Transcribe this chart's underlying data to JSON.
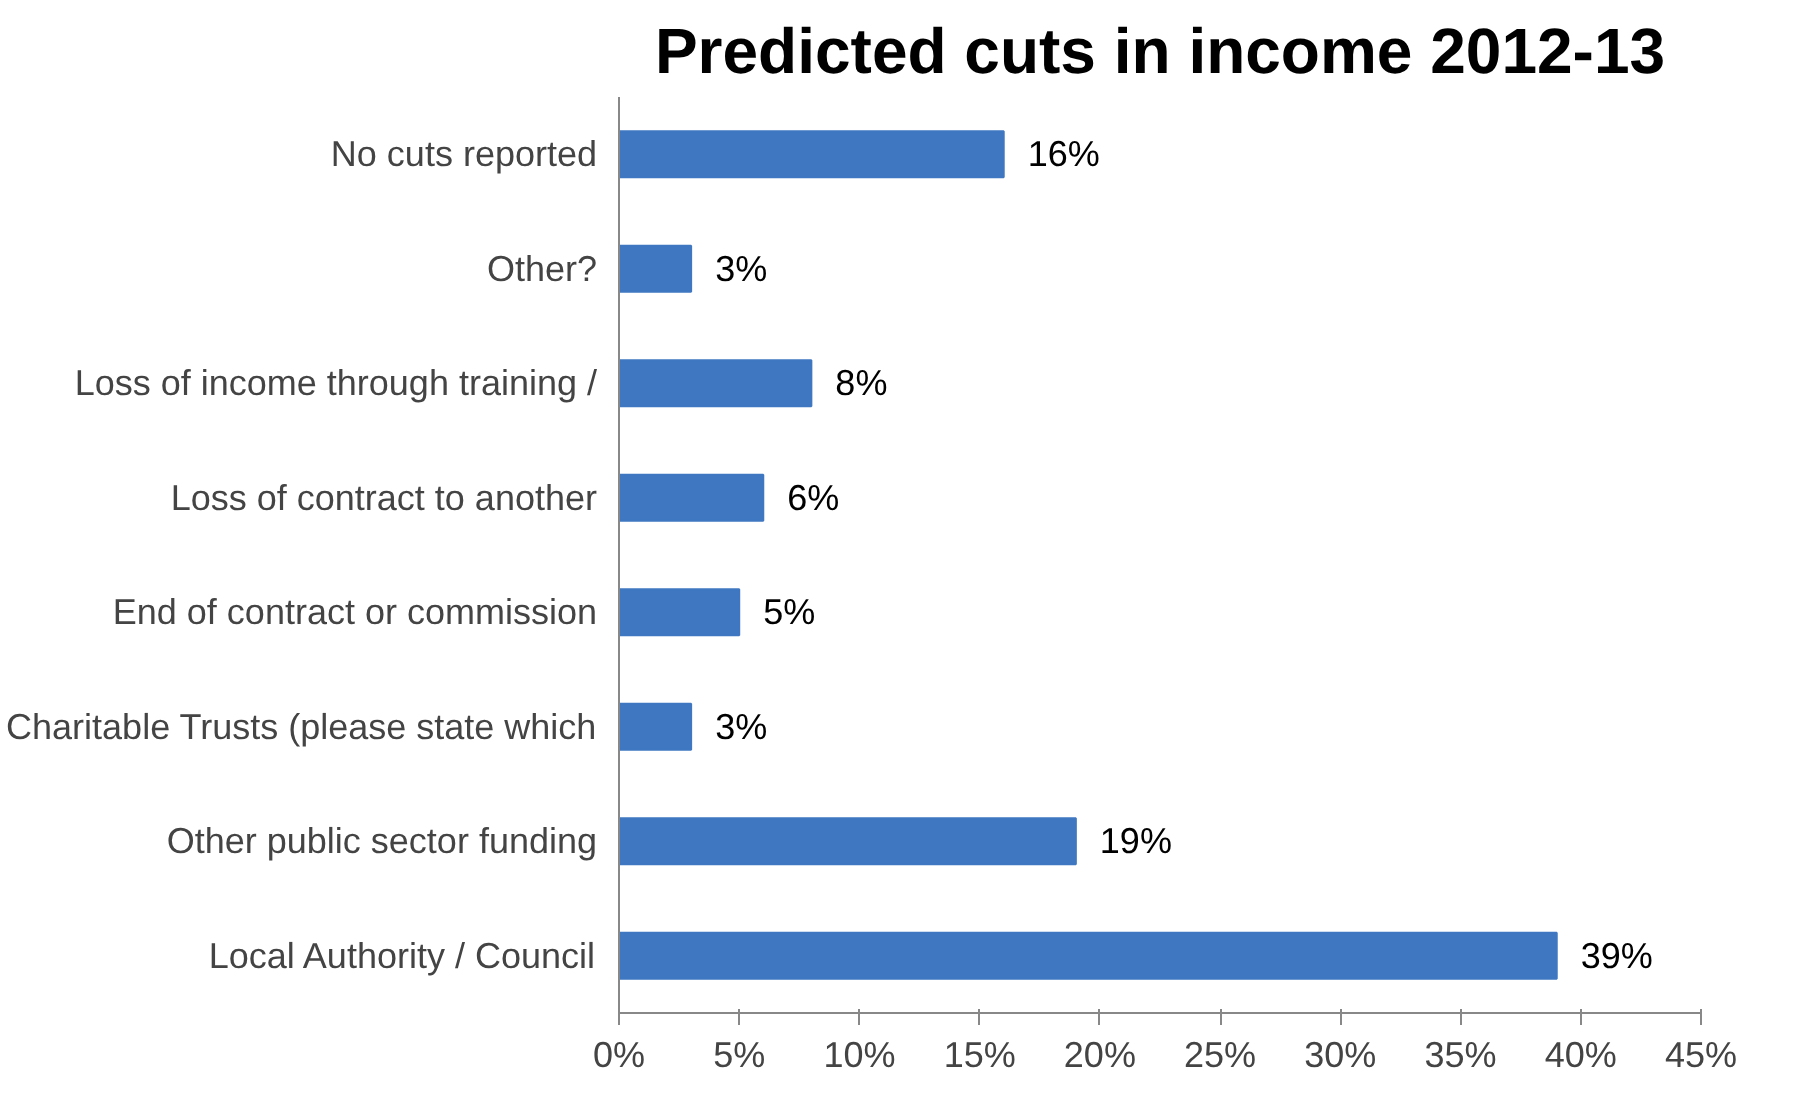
{
  "chart_data": {
    "type": "bar",
    "orientation": "horizontal",
    "title": "Predicted cuts in income 2012-13",
    "categories": [
      "No cuts reported",
      "Other?",
      "Loss of income through training /",
      "Loss of contract to another",
      "End of contract or commission",
      "Charitable Trusts (please state which",
      "Other public sector funding",
      "Local Authority / Council"
    ],
    "values": [
      16,
      3,
      8,
      6,
      5,
      3,
      19,
      39
    ],
    "value_labels": [
      "16%",
      "3%",
      "8%",
      "6%",
      "5%",
      "3%",
      "19%",
      "39%"
    ],
    "color": "#3f77c1",
    "xlim": [
      0,
      45
    ],
    "xticks": [
      {
        "value": 0,
        "label": "0%"
      },
      {
        "value": 5,
        "label": "5%"
      },
      {
        "value": 10,
        "label": "10%"
      },
      {
        "value": 15,
        "label": "15%"
      },
      {
        "value": 20,
        "label": "20%"
      },
      {
        "value": 25,
        "label": "25%"
      },
      {
        "value": 30,
        "label": "30%"
      },
      {
        "value": 35,
        "label": "35%"
      },
      {
        "value": 40,
        "label": "40%"
      },
      {
        "value": 45,
        "label": "45%"
      }
    ],
    "grid": false
  }
}
